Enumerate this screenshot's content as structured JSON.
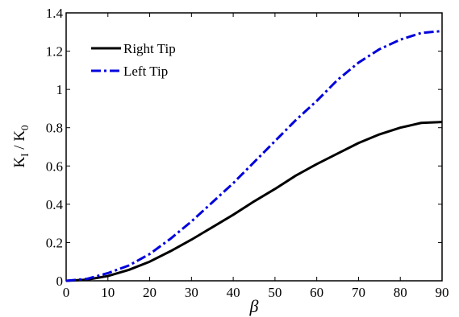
{
  "chart_data": {
    "type": "line",
    "xlabel": "β",
    "ylabel": {
      "main": "K",
      "sub1": "I",
      "sep": " / K",
      "sub2": "0"
    },
    "xlim": [
      0,
      90
    ],
    "ylim": [
      0,
      1.4
    ],
    "x_ticks": [
      "0",
      "10",
      "20",
      "30",
      "40",
      "50",
      "60",
      "70",
      "80",
      "90"
    ],
    "y_ticks": [
      "0",
      "0.2",
      "0.4",
      "0.6",
      "0.8",
      "1",
      "1.2",
      "1.4"
    ],
    "grid": false,
    "legend_position": "top-left",
    "series": [
      {
        "name": "Right Tip",
        "color": "#000000",
        "style": "solid",
        "x": [
          0,
          5,
          10,
          15,
          20,
          25,
          30,
          35,
          40,
          45,
          50,
          55,
          60,
          65,
          70,
          75,
          80,
          85,
          90
        ],
        "y": [
          0,
          0.006,
          0.025,
          0.057,
          0.1,
          0.155,
          0.215,
          0.28,
          0.345,
          0.415,
          0.48,
          0.55,
          0.61,
          0.665,
          0.72,
          0.765,
          0.8,
          0.825,
          0.83
        ]
      },
      {
        "name": "Left Tip",
        "color": "#0000dd",
        "style": "dashdot",
        "x": [
          0,
          5,
          10,
          15,
          20,
          25,
          30,
          35,
          40,
          45,
          50,
          55,
          60,
          65,
          70,
          75,
          80,
          85,
          90
        ],
        "y": [
          0,
          0.01,
          0.04,
          0.08,
          0.14,
          0.22,
          0.31,
          0.41,
          0.51,
          0.62,
          0.73,
          0.84,
          0.94,
          1.05,
          1.14,
          1.21,
          1.26,
          1.295,
          1.305
        ]
      }
    ]
  }
}
